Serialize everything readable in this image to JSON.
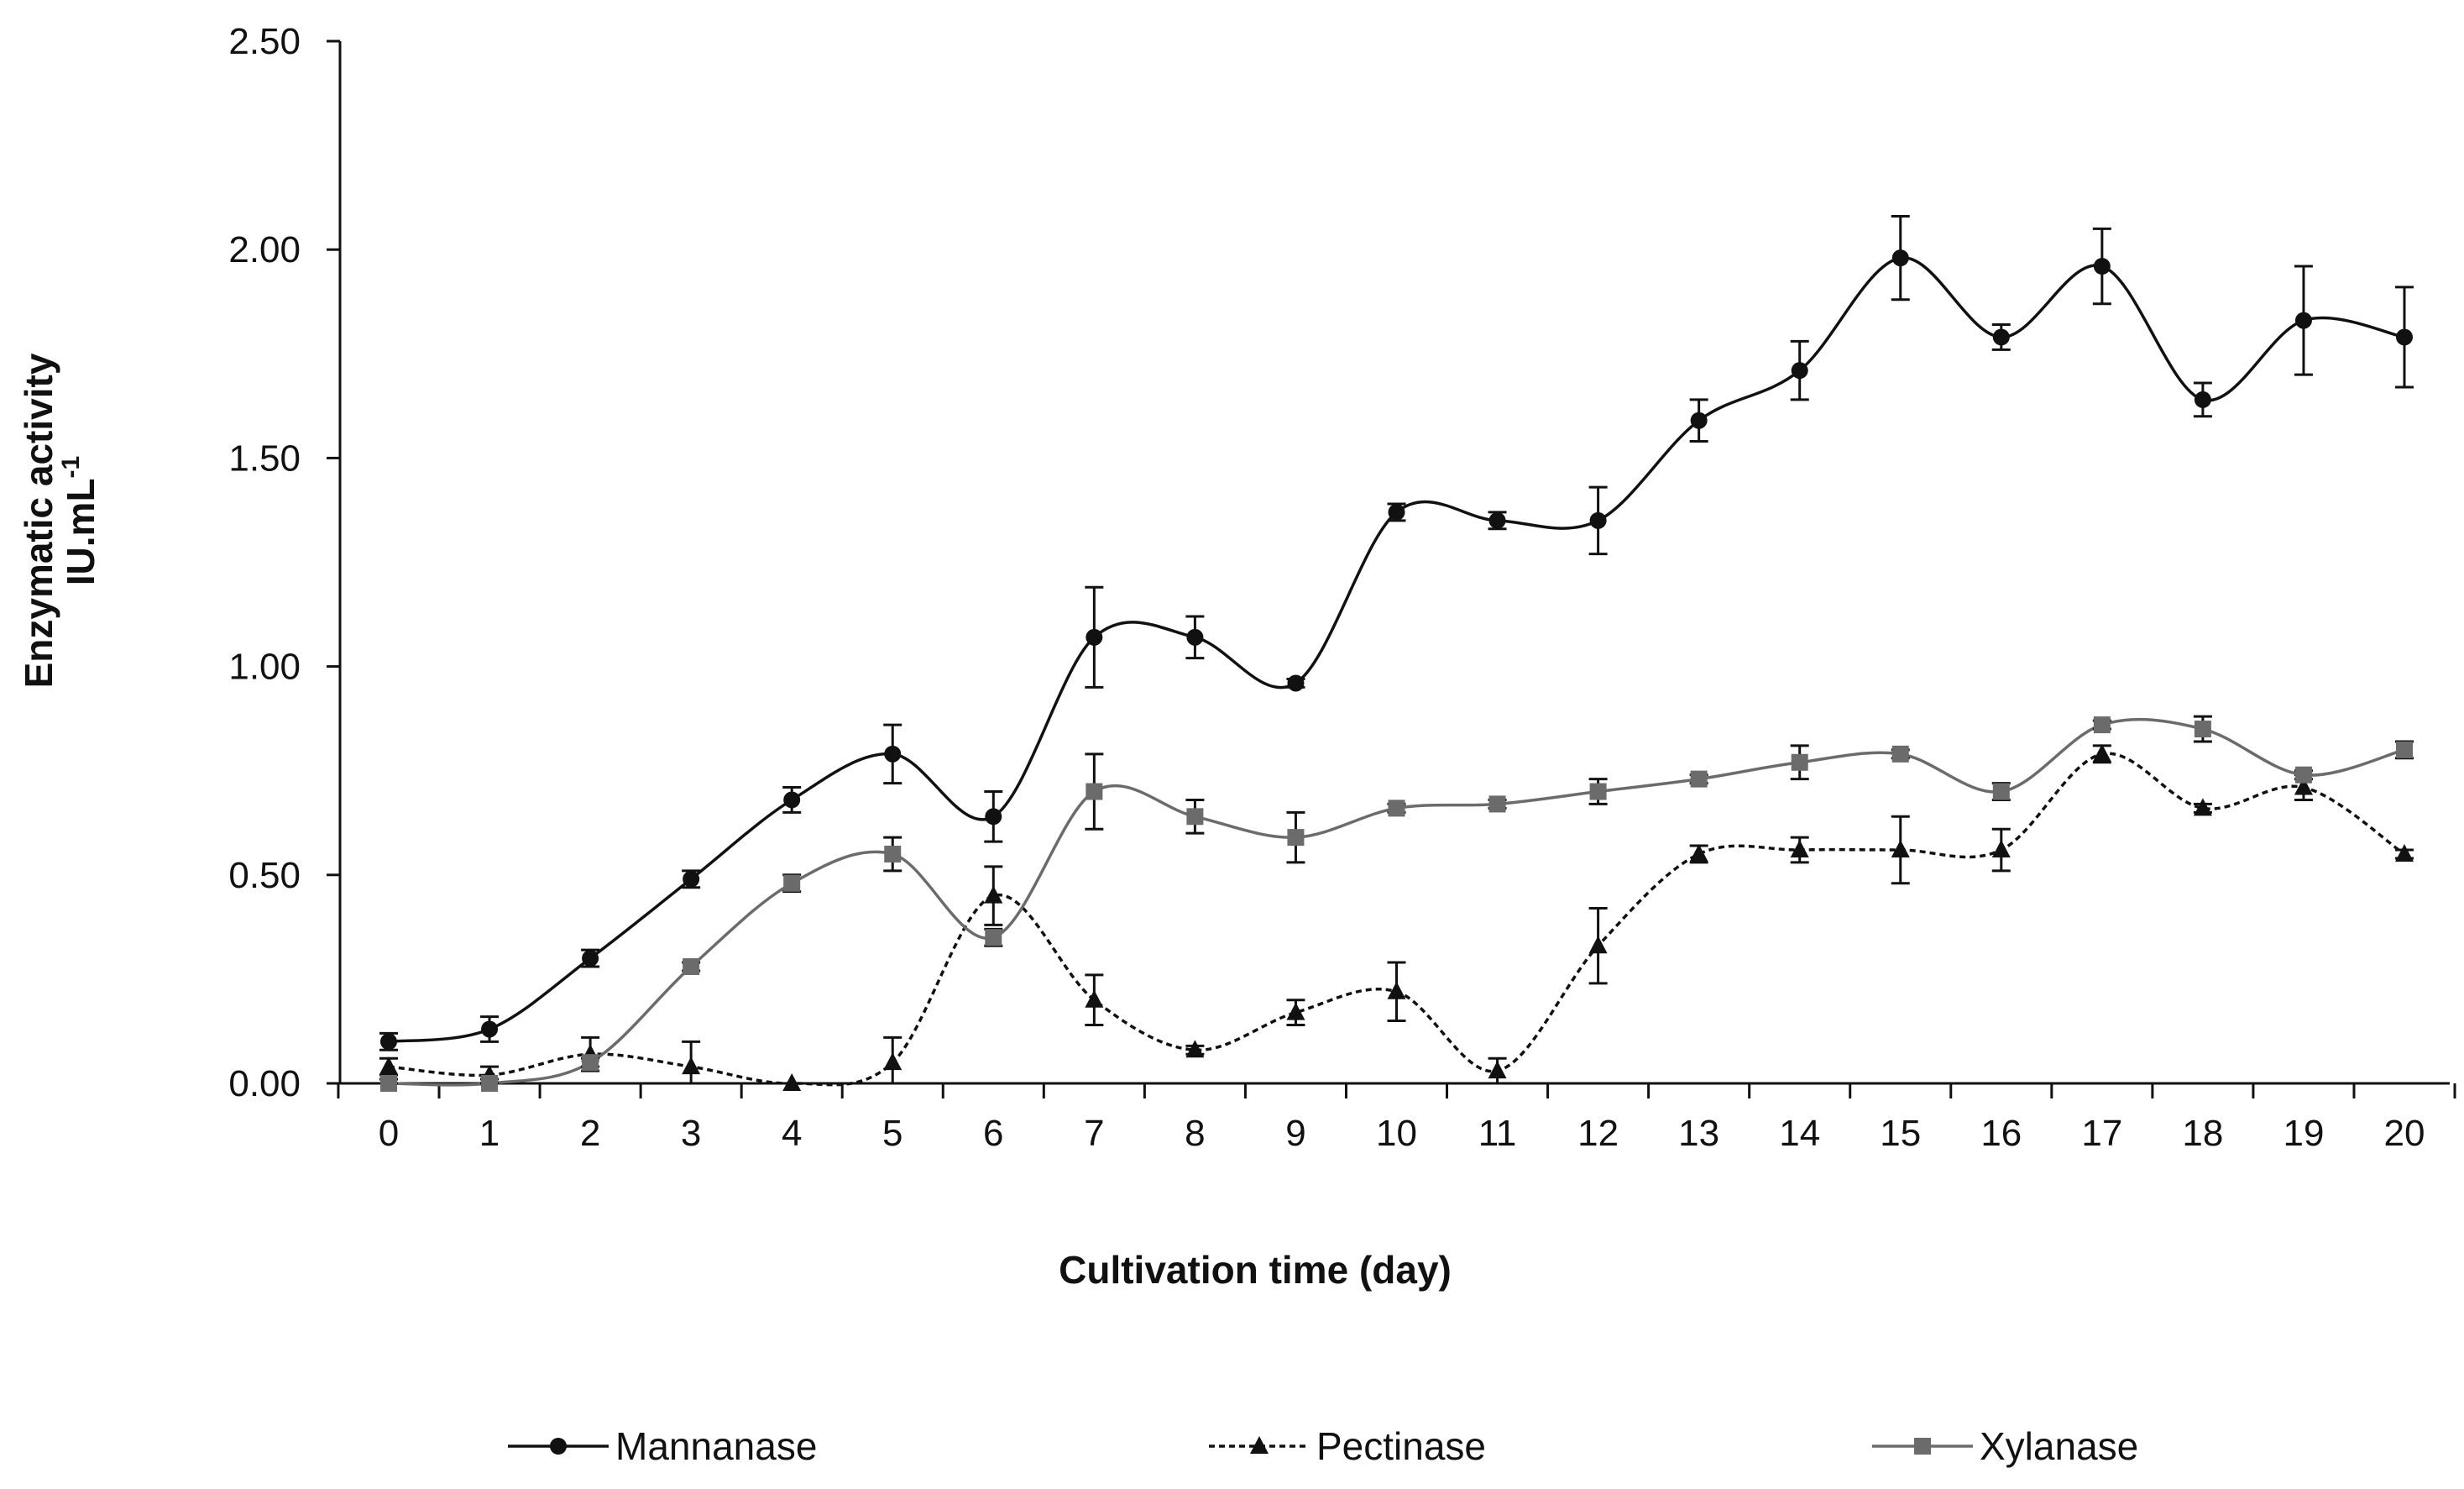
{
  "chart_data": {
    "type": "line",
    "title": "",
    "xlabel": "Cultivation time (day)",
    "ylabel_line1": "Enzymatic activity",
    "ylabel_line2_base": "IU.mL",
    "ylabel_line2_sup": "-1",
    "x": [
      0,
      1,
      2,
      3,
      4,
      5,
      6,
      7,
      8,
      9,
      10,
      11,
      12,
      13,
      14,
      15,
      16,
      17,
      18,
      19,
      20
    ],
    "xticks": [
      "0",
      "1",
      "2",
      "3",
      "4",
      "5",
      "6",
      "7",
      "8",
      "9",
      "10",
      "11",
      "12",
      "13",
      "14",
      "15",
      "16",
      "17",
      "18",
      "19",
      "20"
    ],
    "ylim": [
      0,
      2.5
    ],
    "yticks": [
      "0.00",
      "0.50",
      "1.00",
      "1.50",
      "2.00",
      "2.50"
    ],
    "grid": false,
    "legend_position": "bottom",
    "series": [
      {
        "name": "Mannanase",
        "color": "#111111",
        "marker": "circle",
        "dash": "solid",
        "values": [
          0.1,
          0.13,
          0.3,
          0.49,
          0.68,
          0.79,
          0.64,
          1.07,
          1.07,
          0.96,
          1.37,
          1.35,
          1.35,
          1.59,
          1.71,
          1.98,
          1.79,
          1.96,
          1.64,
          1.83,
          1.79
        ],
        "errors": [
          0.02,
          0.03,
          0.02,
          0.02,
          0.03,
          0.07,
          0.06,
          0.12,
          0.05,
          0.01,
          0.02,
          0.02,
          0.08,
          0.05,
          0.07,
          0.1,
          0.03,
          0.09,
          0.04,
          0.13,
          0.12
        ]
      },
      {
        "name": "Pectinase",
        "color": "#111111",
        "marker": "triangle",
        "dash": "dotted",
        "values": [
          0.04,
          0.02,
          0.07,
          0.04,
          0.0,
          0.05,
          0.45,
          0.2,
          0.08,
          0.17,
          0.22,
          0.03,
          0.33,
          0.55,
          0.56,
          0.56,
          0.56,
          0.79,
          0.66,
          0.71,
          0.55
        ],
        "errors": [
          0.02,
          0.02,
          0.04,
          0.06,
          0.0,
          0.06,
          0.07,
          0.06,
          0.01,
          0.03,
          0.07,
          0.03,
          0.09,
          0.02,
          0.03,
          0.08,
          0.05,
          0.02,
          0.01,
          0.03,
          0.01
        ]
      },
      {
        "name": "Xylanase",
        "color": "#6b6b6b",
        "marker": "square",
        "dash": "solid",
        "values": [
          0.0,
          0.0,
          0.05,
          0.28,
          0.48,
          0.55,
          0.35,
          0.7,
          0.64,
          0.59,
          0.66,
          0.67,
          0.7,
          0.73,
          0.77,
          0.79,
          0.7,
          0.86,
          0.85,
          0.74,
          0.8
        ],
        "errors": [
          0.01,
          0.01,
          0.01,
          0.01,
          0.02,
          0.04,
          0.02,
          0.09,
          0.04,
          0.06,
          0.01,
          0.01,
          0.03,
          0.01,
          0.04,
          0.01,
          0.02,
          0.01,
          0.03,
          0.01,
          0.02
        ]
      }
    ]
  }
}
